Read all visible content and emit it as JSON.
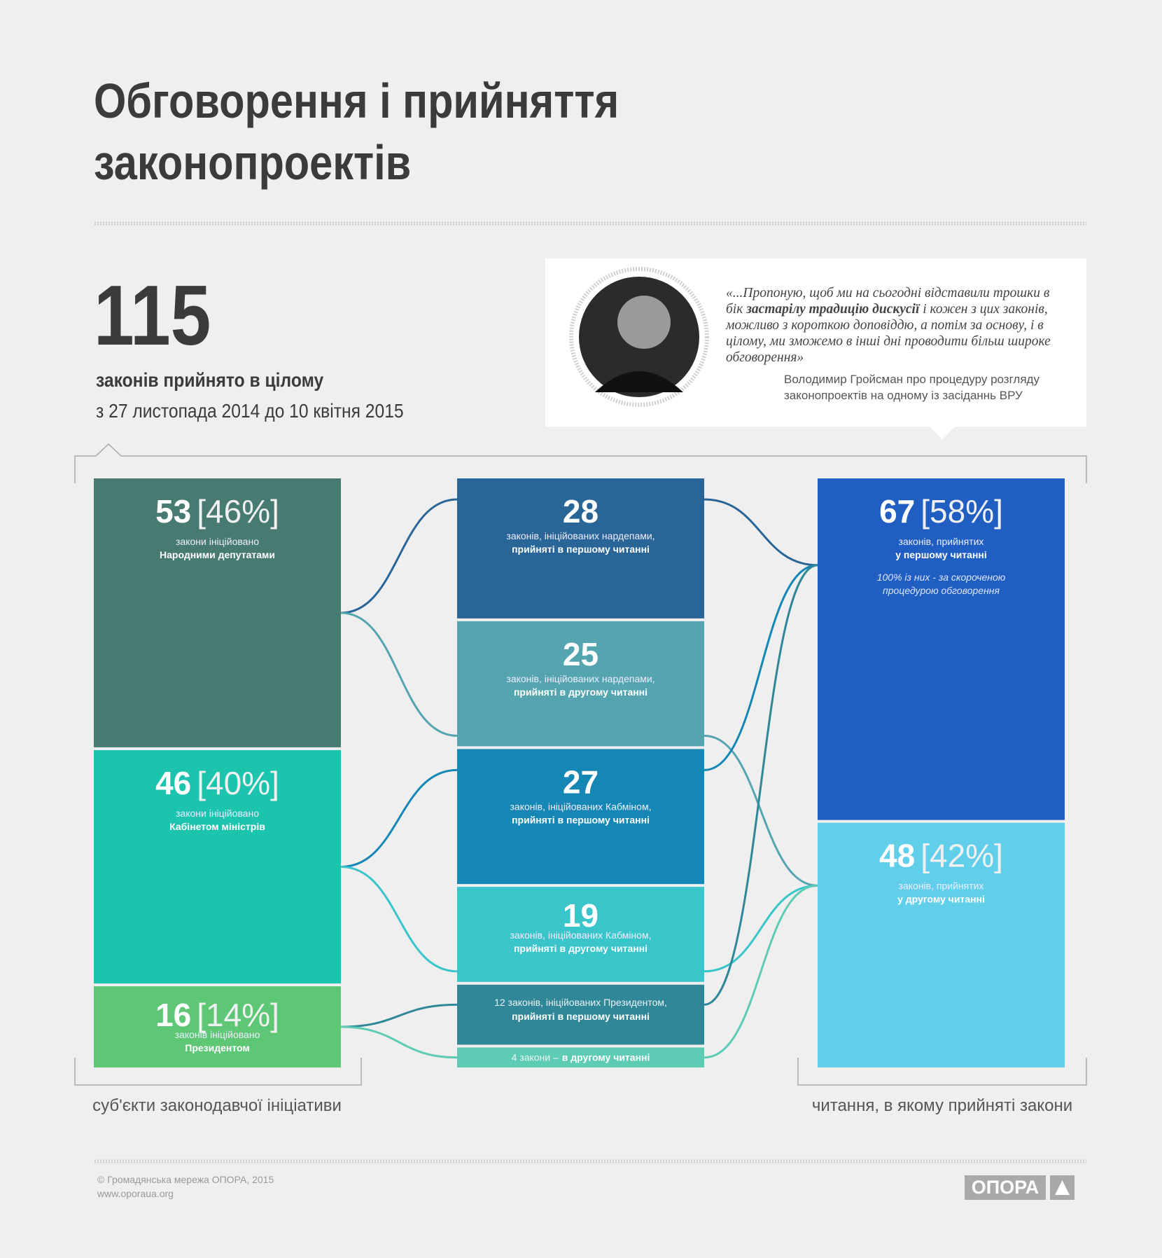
{
  "header": {
    "title": "Обговорення і прийняття законопроектів",
    "total": 115,
    "total_caption": "законів прийнято в цілому",
    "period": "з 27 листопада 2014 до 10 квітня 2015"
  },
  "quote": {
    "parts": [
      "«...Пропоную, щоб ми на сьогодні відставили трошки в бік ",
      "застарілу традицію дискусії",
      " і кожен з цих законів, можливо з короткою доповіддю, а потім за основу, і в цілому, ми зможемо в інші дні проводити більш широке обговорення»"
    ],
    "attribution": "Володимир Гройсман про процедуру розгляду законопроектів на одному із засіданнь ВРУ"
  },
  "chart_data": {
    "type": "sankey",
    "columns": [
      {
        "label": "суб'єкти законодавчої ініціативи",
        "nodes": [
          {
            "value": 53,
            "share_label": "[46%]",
            "caption": "закони ініційовано",
            "caption_bold": "Народними депутатами",
            "color": "#477b72"
          },
          {
            "value": 46,
            "share_label": "[40%]",
            "caption": "закони ініційовано",
            "caption_bold": "Кабінетом міністрів",
            "color": "#1cc4ad"
          },
          {
            "value": 16,
            "share_label": "[14%]",
            "caption": "законів ініційовано",
            "caption_bold": "Президентом",
            "color": "#5ec776"
          }
        ]
      },
      {
        "nodes": [
          {
            "value": 28,
            "caption": "законів, ініційованих нардепами,",
            "caption_bold": "прийняті в першому читанні",
            "color": "#2a6598"
          },
          {
            "value": 25,
            "caption": "законів, ініційованих нардепами,",
            "caption_bold": "прийняті в другому читанні",
            "color": "#54a5b0"
          },
          {
            "value": 27,
            "caption": "законів, ініційованих Кабміном,",
            "caption_bold": "прийняті в першому читанні",
            "color": "#1487b5"
          },
          {
            "value": 19,
            "caption": "законів, ініційованих Кабміном,",
            "caption_bold": "прийняті в другому читанні",
            "color": "#39c5ca"
          },
          {
            "value": 12,
            "value_label": "12 законів, ініційованих Президентом,",
            "caption_bold": "прийняті в першому читанні",
            "color": "#2f8797"
          },
          {
            "value": 4,
            "value_label": "4 закони –",
            "caption_bold": "в другому читанні",
            "color": "#5ecbb4"
          }
        ]
      },
      {
        "label": "читання, в якому прийняті закони",
        "nodes": [
          {
            "value": 67,
            "share_label": "[58%]",
            "caption": "законів, прийнятих",
            "caption_bold": "у першому читанні",
            "note": [
              "100% із них - за скороченою",
              "процедурою обговорення"
            ],
            "color": "#215ec2"
          },
          {
            "value": 48,
            "share_label": "[42%]",
            "caption": "законів, прийнятих",
            "caption_bold": "у другому читанні",
            "color": "#62cfea"
          }
        ]
      }
    ]
  },
  "footer": {
    "copyright": "© Громадянська мережа ОПОРА, 2015",
    "url": "www.oporaua.org",
    "logo": "ОПОРА"
  }
}
